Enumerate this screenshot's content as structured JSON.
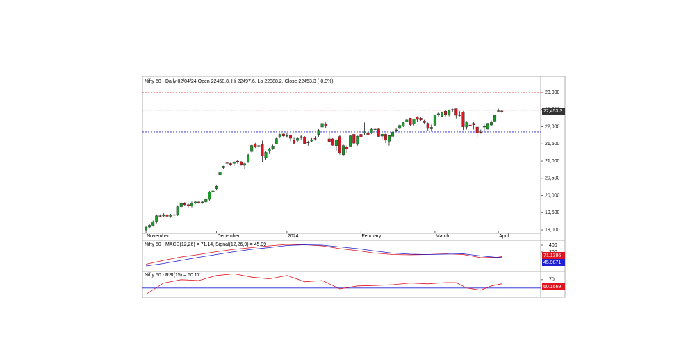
{
  "chart_data": [
    {
      "type": "candlestick",
      "title": "Nifty 50 - Daily 02/04/24 Open 22458.8, Hi 22497.6, Lo 22388.2, Close 22453.3 (-0.0%)",
      "up_color": "#1a9a2a",
      "down_color": "#e0141e",
      "open": [
        19000,
        19080,
        19133,
        19230,
        19411,
        19406,
        19443,
        19395,
        19425,
        19444,
        19675,
        19765,
        19731,
        19694,
        19783,
        19812,
        19802,
        19811,
        19889,
        20097,
        20195,
        20600,
        20808,
        20950,
        20930,
        20935,
        21000,
        20980,
        20880,
        20960,
        21280,
        21500,
        21450,
        21480,
        21100,
        21290,
        21370,
        21500,
        21700,
        21790,
        21727,
        21751,
        21605,
        21605,
        21680,
        21705,
        21530,
        21585,
        21660,
        21773,
        21990,
        22080,
        21648,
        21647,
        21450,
        21716,
        21185,
        21410,
        21434,
        21780,
        21487,
        21780,
        21812,
        21829,
        21826,
        21930,
        21933,
        21727,
        21780,
        21580,
        21720,
        21906,
        21950,
        22020,
        22150,
        22250,
        22085,
        22290,
        22250,
        22170,
        22100,
        21940,
        22048,
        22360,
        22300,
        22450,
        22340,
        22500,
        22525,
        22340,
        22430,
        21990,
        22050,
        22100,
        21990,
        21850,
        21990,
        21930,
        22050,
        22163,
        22455,
        22458.8
      ],
      "high": [
        19120,
        19175,
        19275,
        19450,
        19450,
        19480,
        19485,
        19465,
        19485,
        19715,
        19810,
        19805,
        19770,
        19825,
        19850,
        19850,
        19850,
        19930,
        20135,
        20160,
        20290,
        20700,
        20865,
        20960,
        20950,
        21005,
        21025,
        21000,
        20950,
        21210,
        21490,
        21530,
        21500,
        21600,
        21290,
        21390,
        21480,
        21675,
        21800,
        21800,
        21835,
        21755,
        21680,
        21685,
        21750,
        21725,
        21590,
        21670,
        21725,
        21930,
        22125,
        22125,
        21850,
        21670,
        21640,
        21750,
        21480,
        21460,
        21760,
        21800,
        21740,
        21830,
        22125,
        21830,
        21965,
        21970,
        21960,
        21805,
        21800,
        21770,
        21880,
        21960,
        22070,
        22150,
        22250,
        22250,
        22230,
        22300,
        22270,
        22200,
        22125,
        22060,
        22355,
        22420,
        22440,
        22490,
        22500,
        22525,
        22525,
        22450,
        22450,
        22165,
        22125,
        22150,
        22000,
        21920,
        22080,
        22110,
        22180,
        22350,
        22530,
        22497.6
      ],
      "low": [
        18960,
        19040,
        19095,
        19190,
        19370,
        19365,
        19355,
        19355,
        19385,
        19405,
        19635,
        19690,
        19655,
        19655,
        19745,
        19760,
        19760,
        19770,
        19850,
        20060,
        20150,
        20500,
        20760,
        20860,
        20860,
        20860,
        20925,
        20870,
        20770,
        20950,
        21250,
        21380,
        21360,
        20980,
        21020,
        21210,
        21330,
        21490,
        21670,
        21690,
        21680,
        21580,
        21500,
        21565,
        21630,
        21500,
        21450,
        21560,
        21600,
        21710,
        21960,
        21960,
        21550,
        21450,
        21285,
        21190,
        21140,
        21240,
        21430,
        21500,
        21450,
        21660,
        21760,
        21730,
        21790,
        21860,
        21700,
        21630,
        21530,
        21450,
        21720,
        21860,
        21930,
        21990,
        22130,
        22020,
        22040,
        22150,
        22170,
        22080,
        21875,
        21860,
        22020,
        22300,
        22280,
        22300,
        22300,
        22430,
        22240,
        22300,
        21905,
        21920,
        21950,
        21920,
        21710,
        21800,
        21890,
        21920,
        22030,
        22150,
        22430,
        22388.2
      ],
      "close": [
        19080,
        19133,
        19230,
        19411,
        19406,
        19443,
        19395,
        19425,
        19444,
        19675,
        19765,
        19731,
        19694,
        19783,
        19812,
        19802,
        19811,
        19889,
        20097,
        20133,
        20268,
        20687,
        20855,
        20937,
        20901,
        20969,
        20997,
        20906,
        20926,
        21182,
        21456,
        21418,
        21453,
        21150,
        21255,
        21349,
        21441,
        21654,
        21778,
        21731,
        21741,
        21666,
        21518,
        21658,
        21711,
        21513,
        21545,
        21618,
        21647,
        21894,
        22097,
        22032,
        21571,
        21462,
        21622,
        21239,
        21453,
        21352,
        21737,
        21522,
        21725,
        21697,
        21853,
        21772,
        21929,
        21930,
        21718,
        21782,
        21616,
        21743,
        21840,
        21910,
        22040,
        22122,
        22197,
        22055,
        22217,
        22212,
        22198,
        22123,
        21951,
        21982,
        22338,
        22378,
        22405,
        22356,
        22474,
        22493,
        22333,
        22336,
        21997,
        22146,
        22023,
        22056,
        21817,
        21839,
        22012,
        22097,
        22124,
        22327,
        22462,
        22453.3
      ],
      "last_price": {
        "value": 22453.3,
        "label": "22,453.3"
      },
      "hlines": [
        {
          "value": 23000,
          "color": "#e0141e"
        },
        {
          "value": 22480,
          "color": "#e0141e"
        },
        {
          "value": 21850,
          "color": "#2020d0"
        },
        {
          "value": 21150,
          "color": "#2020d0"
        }
      ],
      "xlim": [
        -1,
        112
      ],
      "xticks": [
        {
          "value": 0,
          "label": "November"
        },
        {
          "value": 20,
          "label": "December"
        },
        {
          "value": 40,
          "label": "2024"
        },
        {
          "value": 61,
          "label": "February"
        },
        {
          "value": 82,
          "label": "March"
        },
        {
          "value": 100,
          "label": "April"
        }
      ],
      "ylim": [
        18900,
        23465
      ],
      "yticks": [
        {
          "value": 19000,
          "label": "19,000"
        },
        {
          "value": 19500,
          "label": "19,500"
        },
        {
          "value": 20000,
          "label": "20,000"
        },
        {
          "value": 20500,
          "label": "20,500"
        },
        {
          "value": 21000,
          "label": "21,000"
        },
        {
          "value": 21500,
          "label": "21,500"
        },
        {
          "value": 22000,
          "label": "22,000"
        },
        {
          "value": 22500,
          "label": "22,500"
        },
        {
          "value": 23000,
          "label": "23,000"
        }
      ]
    },
    {
      "type": "line",
      "title": "Nifty 50 - MACD(12,26) = 71.14, Signal(12,26,9) = 45.99",
      "x": [
        0,
        5,
        10,
        15,
        20,
        25,
        30,
        35,
        40,
        45,
        50,
        55,
        60,
        65,
        70,
        75,
        80,
        85,
        90,
        95,
        100,
        101
      ],
      "series": [
        {
          "color": "#e0141e",
          "values": [
            -150,
            -40,
            60,
            130,
            210,
            280,
            330,
            380,
            420,
            410,
            380,
            300,
            240,
            170,
            130,
            120,
            130,
            150,
            130,
            40,
            55,
            71.14
          ],
          "end_value": 71.1386
        },
        {
          "color": "#2020d0",
          "values": [
            -200,
            -130,
            -40,
            50,
            130,
            210,
            280,
            330,
            390,
            410,
            400,
            350,
            300,
            230,
            170,
            140,
            130,
            140,
            150,
            90,
            45,
            45.99
          ],
          "end_value": 45.9871
        }
      ],
      "xlim": [
        -1,
        112
      ],
      "ylim": [
        -360,
        520
      ],
      "yticks": [
        200,
        400
      ]
    },
    {
      "type": "line",
      "title": "Nifty 50 - RSI(15) = 60.17",
      "x": [
        0,
        5,
        10,
        15,
        20,
        25,
        30,
        35,
        40,
        45,
        50,
        55,
        60,
        65,
        70,
        75,
        80,
        85,
        88,
        91,
        95,
        98,
        101
      ],
      "series": [
        {
          "color": "#e0141e",
          "values": [
            35,
            62,
            70,
            68,
            80,
            84,
            76,
            72,
            80,
            65,
            68,
            48,
            55,
            56,
            58,
            62,
            60,
            63,
            63,
            50,
            45,
            55,
            60.17
          ],
          "end_value": 60.1669
        }
      ],
      "hline": {
        "value": 50,
        "color": "#2020d0"
      },
      "xlim": [
        -1,
        112
      ],
      "ylim": [
        28,
        88
      ],
      "yticks": [
        70
      ]
    }
  ]
}
